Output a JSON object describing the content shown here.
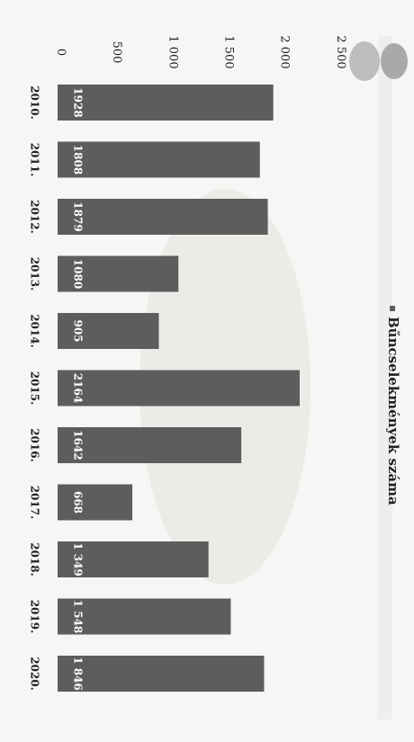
{
  "chart_data": {
    "type": "bar",
    "orientation": "horizontal",
    "rotated_page": true,
    "title": "",
    "legend": {
      "label": "Bűncselekmények száma",
      "position": "right"
    },
    "categories": [
      "2010.",
      "2011.",
      "2012.",
      "2013.",
      "2014.",
      "2015.",
      "2016.",
      "2017.",
      "2018.",
      "2019.",
      "2020."
    ],
    "series": [
      {
        "name": "Bűncselekmények száma",
        "values": [
          1928,
          1808,
          1879,
          1080,
          905,
          2164,
          1642,
          668,
          1349,
          1548,
          1846
        ],
        "labels": [
          "1928",
          "1808",
          "1879",
          "1080",
          "905",
          "2164",
          "1642",
          "668",
          "1 349",
          "1 548",
          "1 846"
        ]
      }
    ],
    "xlim": [
      0,
      2500
    ],
    "ticks": [
      0,
      500,
      1000,
      1500,
      2000,
      2500
    ],
    "tick_labels": [
      "0",
      "500",
      "1 000",
      "1 500",
      "2 000",
      "2 500"
    ],
    "grid": false,
    "colors": {
      "bar": "#5d5d5d",
      "bar_label": "#ffffff",
      "text": "#222222"
    }
  }
}
